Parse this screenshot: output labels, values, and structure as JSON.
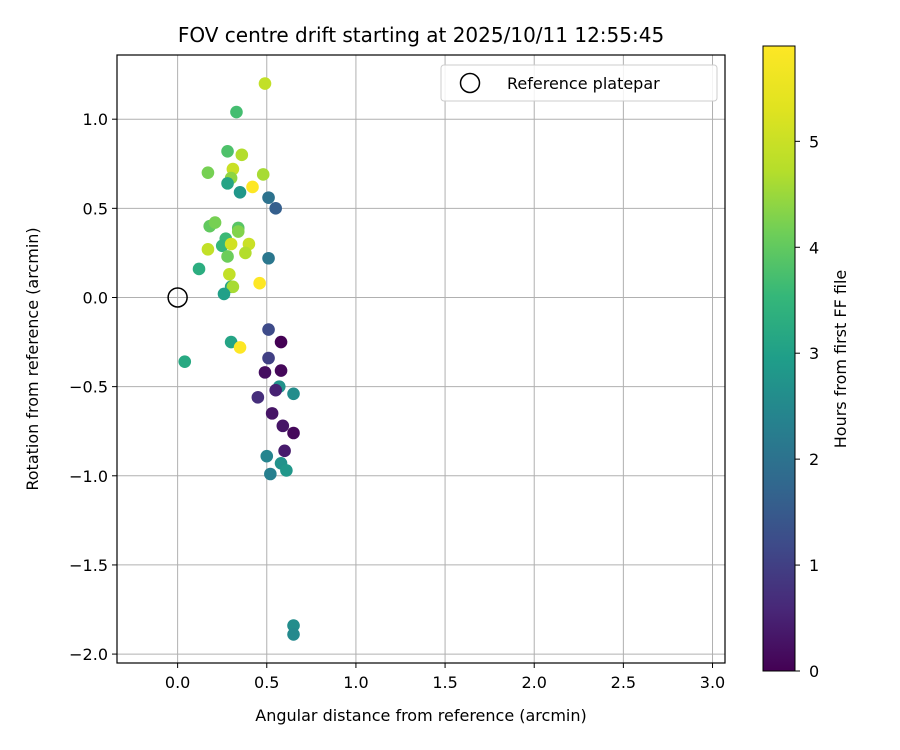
{
  "chart_data": {
    "type": "scatter",
    "title": "FOV centre drift starting at 2025/10/11 12:55:45",
    "xlabel": "Angular distance from reference (arcmin)",
    "ylabel": "Rotation from reference (arcmin)",
    "xlim": [
      -0.34,
      3.07
    ],
    "ylim": [
      -2.05,
      1.36
    ],
    "xticks": [
      0.0,
      0.5,
      1.0,
      1.5,
      2.0,
      2.5,
      3.0
    ],
    "xtick_labels": [
      "0.0",
      "0.5",
      "1.0",
      "1.5",
      "2.0",
      "2.5",
      "3.0"
    ],
    "yticks": [
      -2.0,
      -1.5,
      -1.0,
      -0.5,
      0.0,
      0.5,
      1.0
    ],
    "ytick_labels": [
      "−2.0",
      "−1.5",
      "−1.0",
      "−0.5",
      "0.0",
      "0.5",
      "1.0"
    ],
    "grid": true,
    "legend": {
      "position": "top-right",
      "entries": [
        {
          "label": "Reference platepar",
          "marker": "open-circle"
        }
      ]
    },
    "reference_point": {
      "x": 0.0,
      "y": 0.0
    },
    "colorbar": {
      "label": "Hours from first FF file",
      "colormap": "viridis",
      "range": [
        0,
        5.9
      ],
      "ticks": [
        0,
        1,
        2,
        3,
        4,
        5
      ],
      "tick_labels": [
        "0",
        "1",
        "2",
        "3",
        "4",
        "5"
      ]
    },
    "points": [
      {
        "x": 0.49,
        "y": 1.2,
        "c": 4.9
      },
      {
        "x": 0.33,
        "y": 1.04,
        "c": 3.7
      },
      {
        "x": 0.28,
        "y": 0.82,
        "c": 3.8
      },
      {
        "x": 0.36,
        "y": 0.8,
        "c": 4.7
      },
      {
        "x": 0.17,
        "y": 0.7,
        "c": 4.2
      },
      {
        "x": 0.31,
        "y": 0.72,
        "c": 5.0
      },
      {
        "x": 0.3,
        "y": 0.67,
        "c": 4.4
      },
      {
        "x": 0.48,
        "y": 0.69,
        "c": 4.6
      },
      {
        "x": 0.28,
        "y": 0.64,
        "c": 3.1
      },
      {
        "x": 0.42,
        "y": 0.62,
        "c": 5.9
      },
      {
        "x": 0.35,
        "y": 0.59,
        "c": 2.8
      },
      {
        "x": 0.51,
        "y": 0.56,
        "c": 2.0
      },
      {
        "x": 0.55,
        "y": 0.5,
        "c": 1.6
      },
      {
        "x": 0.18,
        "y": 0.4,
        "c": 4.0
      },
      {
        "x": 0.21,
        "y": 0.42,
        "c": 4.2
      },
      {
        "x": 0.34,
        "y": 0.39,
        "c": 3.9
      },
      {
        "x": 0.34,
        "y": 0.37,
        "c": 4.3
      },
      {
        "x": 0.27,
        "y": 0.33,
        "c": 3.6
      },
      {
        "x": 0.25,
        "y": 0.29,
        "c": 3.5
      },
      {
        "x": 0.3,
        "y": 0.3,
        "c": 5.1
      },
      {
        "x": 0.17,
        "y": 0.27,
        "c": 4.9
      },
      {
        "x": 0.4,
        "y": 0.3,
        "c": 5.0
      },
      {
        "x": 0.38,
        "y": 0.25,
        "c": 4.7
      },
      {
        "x": 0.28,
        "y": 0.23,
        "c": 4.1
      },
      {
        "x": 0.51,
        "y": 0.22,
        "c": 2.1
      },
      {
        "x": 0.12,
        "y": 0.16,
        "c": 3.3
      },
      {
        "x": 0.29,
        "y": 0.13,
        "c": 4.9
      },
      {
        "x": 0.46,
        "y": 0.08,
        "c": 5.9
      },
      {
        "x": 0.3,
        "y": 0.06,
        "c": 3.1
      },
      {
        "x": 0.31,
        "y": 0.06,
        "c": 4.6
      },
      {
        "x": 0.26,
        "y": 0.02,
        "c": 3.0
      },
      {
        "x": 0.51,
        "y": -0.18,
        "c": 1.2
      },
      {
        "x": 0.3,
        "y": -0.25,
        "c": 3.1
      },
      {
        "x": 0.58,
        "y": -0.25,
        "c": 0.0
      },
      {
        "x": 0.35,
        "y": -0.28,
        "c": 5.9
      },
      {
        "x": 0.51,
        "y": -0.34,
        "c": 1.0
      },
      {
        "x": 0.04,
        "y": -0.36,
        "c": 3.2
      },
      {
        "x": 0.49,
        "y": -0.42,
        "c": 0.2
      },
      {
        "x": 0.58,
        "y": -0.41,
        "c": 0.1
      },
      {
        "x": 0.57,
        "y": -0.5,
        "c": 2.7
      },
      {
        "x": 0.55,
        "y": -0.52,
        "c": 0.5
      },
      {
        "x": 0.65,
        "y": -0.54,
        "c": 2.6
      },
      {
        "x": 0.45,
        "y": -0.56,
        "c": 0.7
      },
      {
        "x": 0.53,
        "y": -0.65,
        "c": 0.3
      },
      {
        "x": 0.59,
        "y": -0.72,
        "c": 0.3
      },
      {
        "x": 0.65,
        "y": -0.76,
        "c": 0.1
      },
      {
        "x": 0.6,
        "y": -0.86,
        "c": 0.4
      },
      {
        "x": 0.5,
        "y": -0.89,
        "c": 2.4
      },
      {
        "x": 0.58,
        "y": -0.93,
        "c": 2.7
      },
      {
        "x": 0.61,
        "y": -0.97,
        "c": 2.8
      },
      {
        "x": 0.52,
        "y": -0.99,
        "c": 2.3
      },
      {
        "x": 0.65,
        "y": -1.84,
        "c": 2.6
      },
      {
        "x": 0.65,
        "y": -1.89,
        "c": 2.5
      }
    ]
  }
}
